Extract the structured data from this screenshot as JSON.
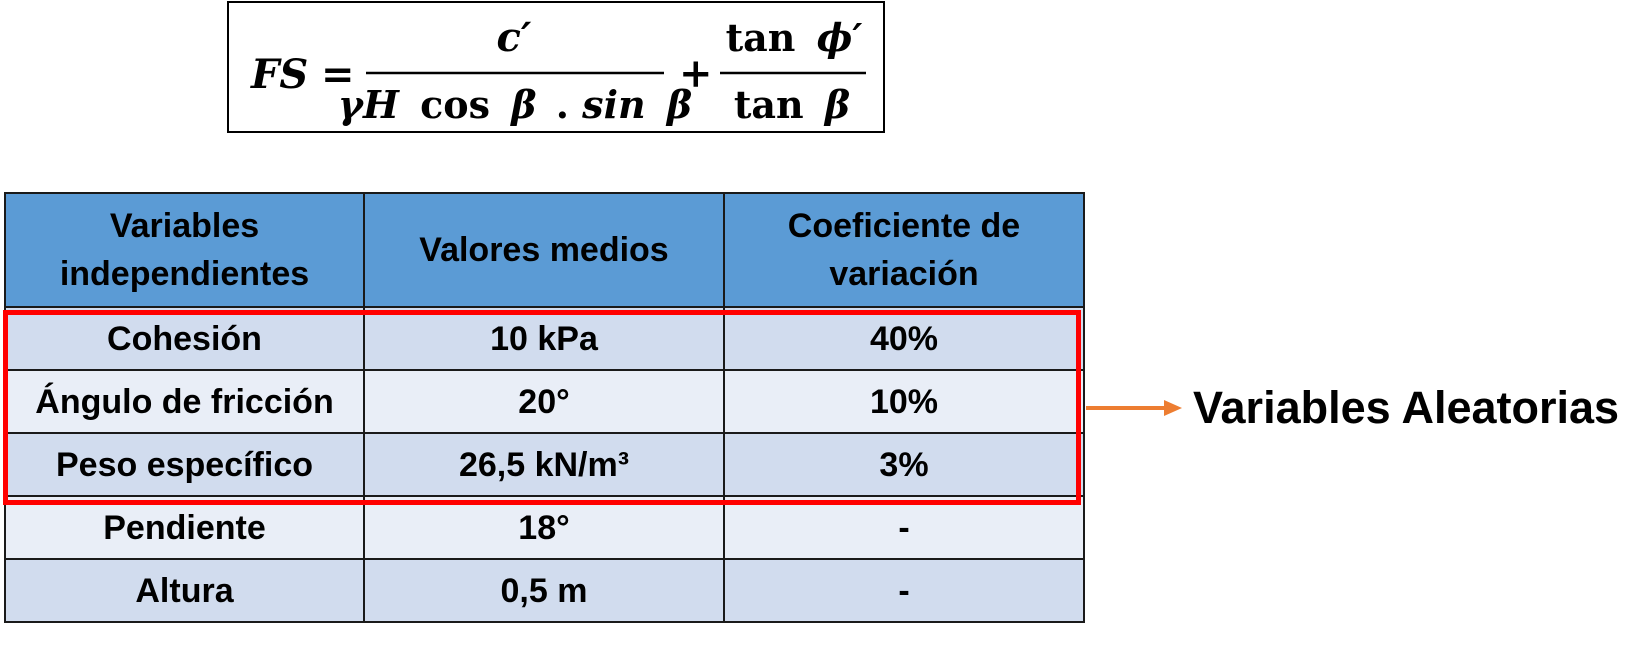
{
  "formula": {
    "lhs": "FS",
    "equals": "=",
    "frac1": {
      "numerator": "c′",
      "denominator_parts": [
        "γH",
        "cos",
        "β",
        ". ",
        "sin",
        "β"
      ]
    },
    "plus": "+",
    "frac2": {
      "numerator_parts": [
        "tan",
        "ϕ′"
      ],
      "denominator_parts": [
        "tan",
        "β"
      ]
    }
  },
  "table": {
    "headers": [
      [
        "Variables",
        "independientes"
      ],
      [
        "Valores medios"
      ],
      [
        "Coeficiente de",
        "variación"
      ]
    ],
    "rows": [
      [
        "Cohesión",
        "10 kPa",
        "40%"
      ],
      [
        "Ángulo de fricción",
        "20°",
        "10%"
      ],
      [
        "Peso específico",
        "26,5 kN/m³",
        "3%"
      ],
      [
        "Pendiente",
        "18°",
        "-"
      ],
      [
        "Altura",
        "0,5 m",
        "-"
      ]
    ]
  },
  "annotation": {
    "label": "Variables Aleatorias"
  },
  "colors": {
    "header_bg": "#5b9bd5",
    "row_dark": "#d1dcee",
    "row_light": "#e9eef7",
    "highlight": "#ff0000",
    "arrow": "#ed7d31"
  }
}
